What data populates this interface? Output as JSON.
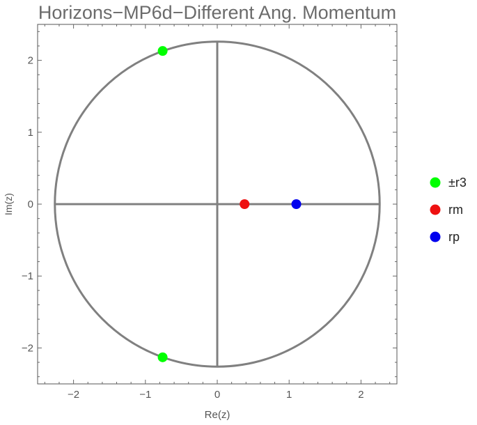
{
  "chart_data": {
    "type": "scatter",
    "title": "Horizons−MP6d−Different Ang. Momentum",
    "xlabel": "Re(z)",
    "ylabel": "Im(z)",
    "xlim": [
      -2.5,
      2.5
    ],
    "ylim": [
      -2.5,
      2.5
    ],
    "xticks": [
      -2,
      -1,
      0,
      1,
      2
    ],
    "yticks": [
      -2,
      -1,
      0,
      1,
      2
    ],
    "xtick_labels": [
      "−2",
      "−1",
      "0",
      "1",
      "2"
    ],
    "ytick_labels": [
      "−2",
      "−1",
      "0",
      "1",
      "2"
    ],
    "frame": true,
    "grid": false,
    "reference_curves": {
      "circle": {
        "center": [
          0,
          0
        ],
        "radius": 2.26
      },
      "axes_lines": true,
      "color": "#808080"
    },
    "legend_position": "right",
    "series": [
      {
        "name": "±r3",
        "color": "#00ff00",
        "points": [
          [
            -0.76,
            2.13
          ],
          [
            -0.76,
            -2.13
          ]
        ]
      },
      {
        "name": "rm",
        "color": "#ee1111",
        "points": [
          [
            0.38,
            0.0
          ]
        ]
      },
      {
        "name": "rp",
        "color": "#0000ee",
        "points": [
          [
            1.1,
            0.0
          ]
        ]
      }
    ]
  }
}
